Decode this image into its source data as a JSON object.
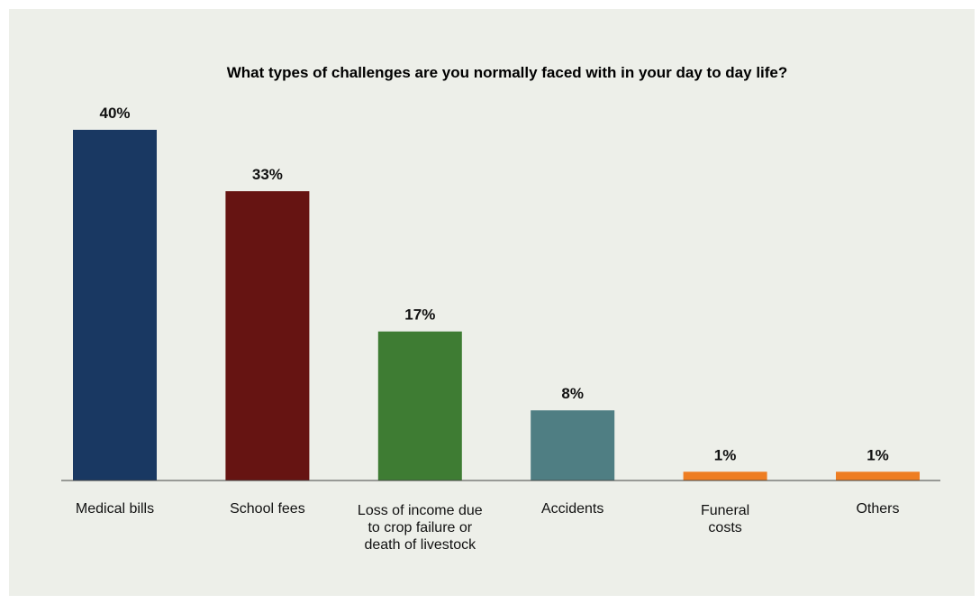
{
  "chart_data": {
    "type": "bar",
    "title": "What types of challenges are you normally faced with in your day to day life?",
    "categories": [
      "Medical bills",
      "School fees",
      "Loss of income due to crop failure or death of livestock",
      "Accidents",
      "Funeral costs",
      "Others"
    ],
    "category_lines": [
      [
        "Medical bills"
      ],
      [
        "School fees"
      ],
      [
        "Loss of income due",
        "to crop failure or",
        "death of livestock"
      ],
      [
        "Accidents"
      ],
      [
        "Funeral",
        "costs"
      ],
      [
        "Others"
      ]
    ],
    "values": [
      40,
      33,
      17,
      8,
      1,
      1
    ],
    "value_labels": [
      "40%",
      "33%",
      "17%",
      "8%",
      "1%",
      "1%"
    ],
    "colors": [
      "#193862",
      "#661412",
      "#3e7c33",
      "#4f7e83",
      "#ee7d22",
      "#ee7d22"
    ],
    "unit": "%",
    "xlabel": "",
    "ylabel": "",
    "ylim": [
      0,
      40
    ],
    "grid": false,
    "legend": "none"
  }
}
